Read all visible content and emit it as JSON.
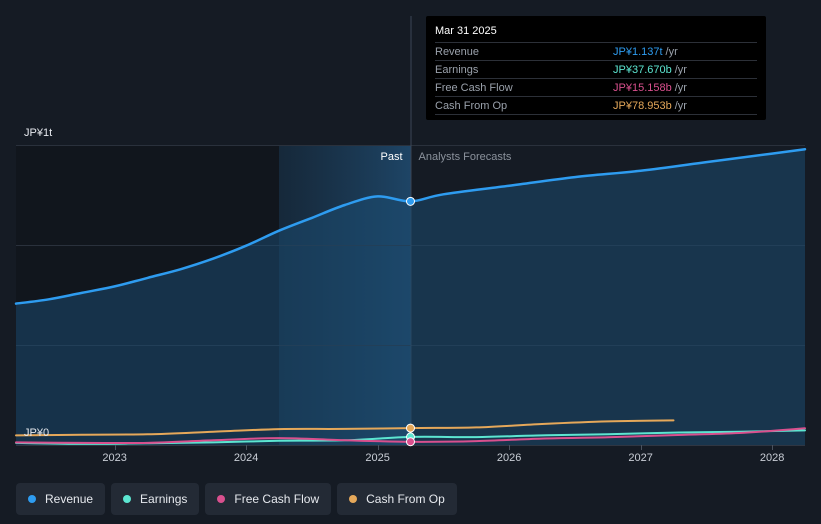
{
  "tooltip": {
    "date": "Mar 31 2025",
    "rows": [
      {
        "label": "Revenue",
        "value": "JP¥1.137t",
        "unit": "/yr",
        "color": "#2e9cf0"
      },
      {
        "label": "Earnings",
        "value": "JP¥37.670b",
        "unit": "/yr",
        "color": "#5ce6d1"
      },
      {
        "label": "Free Cash Flow",
        "value": "JP¥15.158b",
        "unit": "/yr",
        "color": "#d9508e"
      },
      {
        "label": "Cash From Op",
        "value": "JP¥78.953b",
        "unit": "/yr",
        "color": "#e5a85a"
      }
    ]
  },
  "chart_data": {
    "type": "line",
    "y_top_label": "JP¥1t",
    "y_bottom_label": "JP¥0",
    "region_labels": {
      "past": "Past",
      "forecast": "Analysts Forecasts"
    },
    "x_ticks": [
      2023,
      2024,
      2025,
      2026,
      2027,
      2028
    ],
    "xlim": [
      2022.25,
      2028.25
    ],
    "ylim": [
      0,
      1.4
    ],
    "divider_x": 2025.25,
    "highlight_start_x": 2024.25,
    "grid": true,
    "series": [
      {
        "name": "Revenue",
        "color": "#2e9cf0",
        "fill": true,
        "points": [
          [
            2022.25,
            0.66
          ],
          [
            2022.5,
            0.68
          ],
          [
            2022.75,
            0.71
          ],
          [
            2023.0,
            0.74
          ],
          [
            2023.25,
            0.78
          ],
          [
            2023.5,
            0.82
          ],
          [
            2023.75,
            0.87
          ],
          [
            2024.0,
            0.93
          ],
          [
            2024.25,
            1.0
          ],
          [
            2024.5,
            1.06
          ],
          [
            2024.75,
            1.12
          ],
          [
            2025.0,
            1.16
          ],
          [
            2025.25,
            1.137
          ],
          [
            2025.5,
            1.17
          ],
          [
            2026.0,
            1.21
          ],
          [
            2026.5,
            1.25
          ],
          [
            2027.0,
            1.28
          ],
          [
            2027.5,
            1.32
          ],
          [
            2028.0,
            1.36
          ],
          [
            2028.25,
            1.38
          ]
        ]
      },
      {
        "name": "Earnings",
        "color": "#5ce6d1",
        "fill": false,
        "points": [
          [
            2022.25,
            0.01
          ],
          [
            2022.75,
            0.005
          ],
          [
            2023.25,
            0.008
          ],
          [
            2023.75,
            0.012
          ],
          [
            2024.25,
            0.02
          ],
          [
            2024.75,
            0.022
          ],
          [
            2025.25,
            0.0377
          ],
          [
            2025.75,
            0.037
          ],
          [
            2026.25,
            0.045
          ],
          [
            2026.75,
            0.05
          ],
          [
            2027.25,
            0.058
          ],
          [
            2027.75,
            0.062
          ],
          [
            2028.25,
            0.068
          ]
        ]
      },
      {
        "name": "Free Cash Flow",
        "color": "#d9508e",
        "fill": false,
        "points": [
          [
            2022.25,
            0.012
          ],
          [
            2022.75,
            0.01
          ],
          [
            2023.25,
            0.01
          ],
          [
            2023.75,
            0.022
          ],
          [
            2024.25,
            0.032
          ],
          [
            2024.75,
            0.022
          ],
          [
            2025.25,
            0.01516
          ],
          [
            2025.75,
            0.018
          ],
          [
            2026.25,
            0.03
          ],
          [
            2026.75,
            0.036
          ],
          [
            2027.25,
            0.046
          ],
          [
            2027.75,
            0.056
          ],
          [
            2028.25,
            0.078
          ]
        ]
      },
      {
        "name": "Cash From Op",
        "color": "#e5a85a",
        "fill": false,
        "points": [
          [
            2022.25,
            0.045
          ],
          [
            2022.75,
            0.048
          ],
          [
            2023.25,
            0.05
          ],
          [
            2023.75,
            0.062
          ],
          [
            2024.25,
            0.074
          ],
          [
            2024.75,
            0.075
          ],
          [
            2025.25,
            0.07895
          ],
          [
            2025.75,
            0.082
          ],
          [
            2026.25,
            0.098
          ],
          [
            2026.75,
            0.11
          ],
          [
            2027.25,
            0.115
          ]
        ]
      }
    ]
  },
  "legend": [
    {
      "label": "Revenue",
      "color": "#2e9cf0"
    },
    {
      "label": "Earnings",
      "color": "#5ce6d1"
    },
    {
      "label": "Free Cash Flow",
      "color": "#d9508e"
    },
    {
      "label": "Cash From Op",
      "color": "#e5a85a"
    }
  ]
}
